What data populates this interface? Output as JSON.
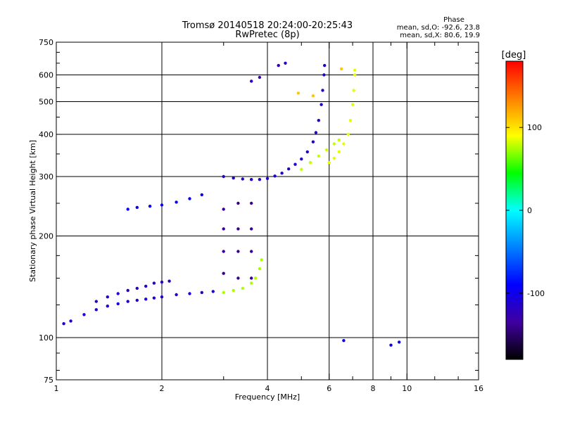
{
  "chart_data": {
    "type": "scatter",
    "title": "Tromsø 20140518 20:24:00-20:25:43",
    "subtitle": "RwPretec (8p)",
    "xlabel": "Frequency [MHz]",
    "ylabel": "Stationary phase Virtual Height [km]",
    "x_scale": "log2",
    "y_scale": "log",
    "xlim": [
      1,
      16
    ],
    "ylim": [
      75,
      750
    ],
    "x_ticks": [
      1,
      2,
      4,
      6,
      8,
      10,
      16
    ],
    "x_minor_ticks": [
      3,
      5,
      7,
      9,
      12,
      14
    ],
    "y_ticks": [
      75,
      100,
      200,
      300,
      400,
      500,
      600,
      750
    ],
    "y_minor_ticks": [
      80,
      90,
      125,
      150,
      175,
      250,
      350,
      450,
      550,
      650,
      700
    ],
    "grid_x": [
      2,
      4,
      6,
      8,
      10
    ],
    "grid_y": [
      100,
      200,
      300,
      400,
      500,
      600
    ],
    "phase_info": {
      "heading": "Phase",
      "line_o": "mean, sd,O: -92.6, 23.8",
      "line_x": "mean, sd,X:  80.6, 19.9"
    },
    "colorbar": {
      "label": "[deg]",
      "range": [
        -180,
        180
      ],
      "tick_labels": [
        "100",
        "0",
        "-100"
      ],
      "tick_values": [
        100,
        0,
        -100
      ],
      "colors": [
        "#ff0000",
        "#ff8000",
        "#ffff00",
        "#00ff00",
        "#00ffff",
        "#0080ff",
        "#0000ff",
        "#4000a0",
        "#000000"
      ]
    },
    "series": [
      {
        "phase": -95,
        "points": [
          [
            1.6,
            240
          ],
          [
            1.7,
            243
          ],
          [
            1.85,
            245
          ],
          [
            2.0,
            247
          ],
          [
            2.2,
            252
          ],
          [
            2.4,
            258
          ],
          [
            2.6,
            265
          ]
        ]
      },
      {
        "phase": -110,
        "points": [
          [
            1.05,
            110
          ],
          [
            1.1,
            112
          ],
          [
            1.2,
            117
          ],
          [
            1.3,
            121
          ],
          [
            1.4,
            124
          ],
          [
            1.5,
            126
          ],
          [
            1.6,
            128
          ],
          [
            1.7,
            129
          ],
          [
            1.8,
            130
          ],
          [
            1.9,
            131
          ],
          [
            2.0,
            132
          ],
          [
            2.2,
            134
          ],
          [
            2.4,
            135
          ],
          [
            2.6,
            136
          ],
          [
            2.8,
            137
          ]
        ]
      },
      {
        "phase": -120,
        "points": [
          [
            1.3,
            128
          ],
          [
            1.4,
            132
          ],
          [
            1.5,
            135
          ],
          [
            1.6,
            138
          ],
          [
            1.7,
            140
          ],
          [
            1.8,
            142
          ],
          [
            1.9,
            145
          ],
          [
            2.0,
            146
          ],
          [
            2.1,
            147
          ]
        ]
      },
      {
        "phase": -115,
        "points": [
          [
            3.0,
            300
          ],
          [
            3.2,
            297
          ],
          [
            3.4,
            295
          ],
          [
            3.6,
            294
          ],
          [
            3.8,
            294
          ],
          [
            4.0,
            296
          ],
          [
            4.2,
            301
          ],
          [
            4.4,
            307
          ],
          [
            4.6,
            316
          ],
          [
            4.8,
            326
          ],
          [
            5.0,
            338
          ],
          [
            5.2,
            355
          ],
          [
            5.4,
            380
          ],
          [
            5.5,
            405
          ],
          [
            5.6,
            440
          ],
          [
            5.7,
            490
          ],
          [
            5.75,
            540
          ],
          [
            5.8,
            600
          ],
          [
            5.82,
            640
          ]
        ]
      },
      {
        "phase": 85,
        "points": [
          [
            6.0,
            330
          ],
          [
            6.2,
            340
          ],
          [
            6.4,
            355
          ],
          [
            6.6,
            375
          ],
          [
            6.8,
            400
          ],
          [
            6.9,
            440
          ],
          [
            7.0,
            490
          ],
          [
            7.05,
            540
          ],
          [
            7.1,
            600
          ],
          [
            7.1,
            620
          ]
        ]
      },
      {
        "phase": 80,
        "points": [
          [
            5.0,
            315
          ],
          [
            5.3,
            330
          ],
          [
            5.6,
            345
          ],
          [
            5.9,
            360
          ],
          [
            6.2,
            375
          ],
          [
            6.4,
            385
          ]
        ]
      },
      {
        "phase": -140,
        "points": [
          [
            3.0,
            155
          ],
          [
            3.0,
            180
          ],
          [
            3.0,
            210
          ],
          [
            3.0,
            240
          ],
          [
            3.3,
            150
          ],
          [
            3.3,
            180
          ],
          [
            3.3,
            210
          ],
          [
            3.3,
            250
          ],
          [
            3.6,
            150
          ],
          [
            3.6,
            180
          ],
          [
            3.6,
            210
          ],
          [
            3.6,
            250
          ]
        ]
      },
      {
        "phase": 75,
        "points": [
          [
            3.0,
            136
          ],
          [
            3.2,
            138
          ],
          [
            3.4,
            140
          ],
          [
            3.6,
            145
          ],
          [
            3.7,
            150
          ],
          [
            3.8,
            160
          ],
          [
            3.85,
            170
          ]
        ]
      },
      {
        "phase": -125,
        "points": [
          [
            4.3,
            640
          ],
          [
            4.5,
            650
          ],
          [
            3.6,
            575
          ],
          [
            3.8,
            590
          ]
        ]
      },
      {
        "phase": -100,
        "points": [
          [
            9.0,
            95
          ],
          [
            9.5,
            97
          ],
          [
            6.6,
            98
          ]
        ]
      },
      {
        "phase": 110,
        "points": [
          [
            4.9,
            530
          ],
          [
            6.5,
            625
          ],
          [
            5.4,
            520
          ]
        ]
      }
    ]
  }
}
